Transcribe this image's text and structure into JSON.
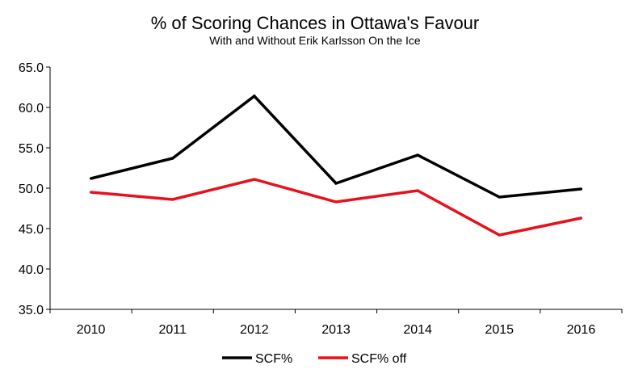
{
  "chart_data": {
    "type": "line",
    "title": "% of Scoring Chances in Ottawa's Favour",
    "subtitle": "With and Without Erik Karlsson On the Ice",
    "categories": [
      "2010",
      "2011",
      "2012",
      "2013",
      "2014",
      "2015",
      "2016"
    ],
    "series": [
      {
        "name": "SCF%",
        "color": "#000000",
        "values": [
          51.2,
          53.7,
          61.4,
          50.6,
          54.1,
          48.9,
          49.9
        ]
      },
      {
        "name": "SCF% off",
        "color": "#e8101a",
        "values": [
          49.5,
          48.6,
          51.1,
          48.3,
          49.7,
          44.2,
          46.3
        ]
      }
    ],
    "ylim": [
      35.0,
      65.0
    ],
    "yticks": [
      "35.0",
      "40.0",
      "45.0",
      "50.0",
      "55.0",
      "60.0",
      "65.0"
    ],
    "grid": false,
    "legend": "bottom"
  }
}
